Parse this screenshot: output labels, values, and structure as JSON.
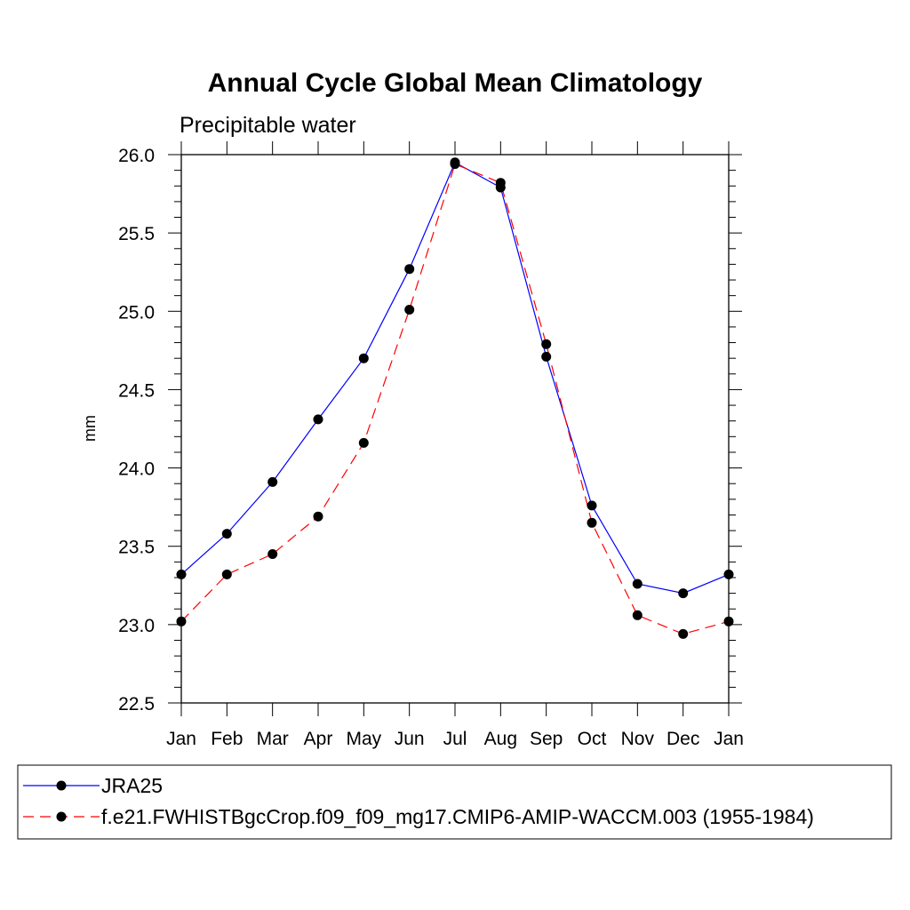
{
  "chart_data": {
    "type": "line",
    "title": "Annual Cycle Global Mean Climatology",
    "subtitle": "Precipitable water",
    "xlabel": "",
    "ylabel": "mm",
    "categories": [
      "Jan",
      "Feb",
      "Mar",
      "Apr",
      "May",
      "Jun",
      "Jul",
      "Aug",
      "Sep",
      "Oct",
      "Nov",
      "Dec",
      "Jan"
    ],
    "ylim": [
      22.5,
      26.0
    ],
    "yticks": [
      "22.5",
      "23.0",
      "23.5",
      "24.0",
      "24.5",
      "25.0",
      "25.5",
      "26.0"
    ],
    "grid": false,
    "legend_position": "bottom",
    "series": [
      {
        "name": "JRA25",
        "color": "#0000ff",
        "dash": "solid",
        "marker": "circle",
        "values": [
          23.32,
          23.58,
          23.91,
          24.31,
          24.7,
          25.27,
          25.95,
          25.79,
          24.71,
          23.76,
          23.26,
          23.2,
          23.32
        ]
      },
      {
        "name": "f.e21.FWHISTBgcCrop.f09_f09_mg17.CMIP6-AMIP-WACCM.003 (1955-1984)",
        "color": "#ff0000",
        "dash": "dashed",
        "marker": "circle",
        "values": [
          23.02,
          23.32,
          23.45,
          23.69,
          24.16,
          25.01,
          25.94,
          25.82,
          24.79,
          23.65,
          23.06,
          22.94,
          23.02
        ]
      }
    ]
  }
}
